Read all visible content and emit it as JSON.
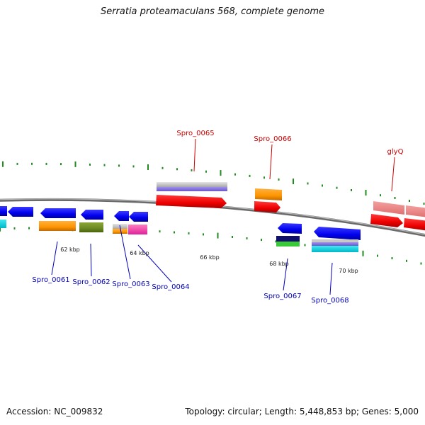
{
  "title": "Serratia proteamaculans 568, complete genome",
  "footer": {
    "accession": "Accession: NC_009832",
    "summary": "Topology: circular; Length: 5,448,853 bp; Genes: 5,000"
  },
  "colors": {
    "forward_label": "#cc0000",
    "reverse_label": "#0000bb",
    "backbone": "#808080",
    "tick": "#228b22"
  },
  "scale_labels": [
    "62 kbp",
    "64 kbp",
    "66 kbp",
    "68 kbp",
    "70 kbp"
  ],
  "genes": {
    "forward": [
      "Spro_0065",
      "Spro_0066",
      "glyQ"
    ],
    "reverse": [
      "Spro_0061",
      "Spro_0062",
      "Spro_0063",
      "Spro_0064",
      "Spro_0067",
      "Spro_0068"
    ]
  }
}
